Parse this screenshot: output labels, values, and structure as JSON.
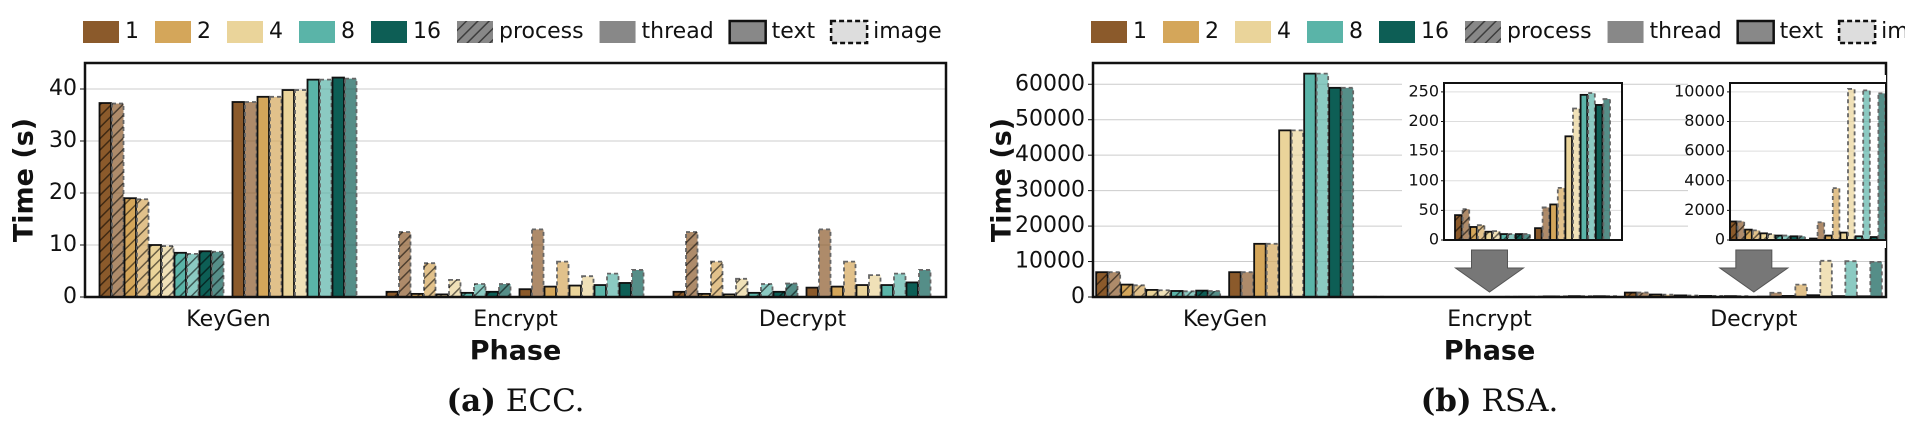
{
  "chart_data": [
    {
      "type": "bar",
      "caption_label": "(a)",
      "caption": "ECC.",
      "ylabel": "Time (s)",
      "xlabel": "Phase",
      "counts": [
        "1",
        "2",
        "4",
        "8",
        "16"
      ],
      "colors": [
        "#8b5a2b",
        "#d4a65a",
        "#ead49a",
        "#5ab4a8",
        "#0d5e55"
      ],
      "modes": [
        "process",
        "thread"
      ],
      "inputs": [
        "text",
        "image"
      ],
      "categories": [
        "KeyGen",
        "Encrypt",
        "Decrypt"
      ],
      "ylim": [
        0,
        45
      ],
      "yticks": [
        0,
        10,
        20,
        30,
        40
      ],
      "grid": true,
      "values": [
        [
          [
            [
              37.3,
              37.2
            ],
            [
              19,
              18.8
            ],
            [
              10,
              9.8
            ],
            [
              8.5,
              8.3
            ],
            [
              8.8,
              8.7
            ]
          ],
          [
            [
              37.5,
              37.5
            ],
            [
              38.5,
              38.5
            ],
            [
              39.8,
              39.8
            ],
            [
              41.8,
              41.8
            ],
            [
              42.2,
              42.0
            ]
          ]
        ],
        [
          [
            [
              1.0,
              12.5
            ],
            [
              0.6,
              6.5
            ],
            [
              0.5,
              3.3
            ],
            [
              0.8,
              2.5
            ],
            [
              1.0,
              2.5
            ]
          ],
          [
            [
              1.5,
              13
            ],
            [
              2.0,
              6.8
            ],
            [
              2.2,
              4.0
            ],
            [
              2.3,
              4.5
            ],
            [
              2.7,
              5.2
            ]
          ]
        ],
        [
          [
            [
              1.0,
              12.5
            ],
            [
              0.6,
              6.8
            ],
            [
              0.5,
              3.5
            ],
            [
              0.8,
              2.5
            ],
            [
              1.0,
              2.6
            ]
          ],
          [
            [
              1.8,
              13
            ],
            [
              2.0,
              6.8
            ],
            [
              2.3,
              4.2
            ],
            [
              2.3,
              4.5
            ],
            [
              2.8,
              5.2
            ]
          ]
        ]
      ]
    },
    {
      "type": "bar",
      "caption_label": "(b)",
      "caption": "RSA.",
      "ylabel": "Time (s)",
      "xlabel": "Phase",
      "counts": [
        "1",
        "2",
        "4",
        "8",
        "16"
      ],
      "colors": [
        "#8b5a2b",
        "#d4a65a",
        "#ead49a",
        "#5ab4a8",
        "#0d5e55"
      ],
      "modes": [
        "process",
        "thread"
      ],
      "inputs": [
        "text",
        "image"
      ],
      "categories": [
        "KeyGen",
        "Encrypt",
        "Decrypt"
      ],
      "ylim": [
        0,
        66000
      ],
      "yticks": [
        0,
        10000,
        20000,
        30000,
        40000,
        50000,
        60000
      ],
      "grid": true,
      "values": [
        [
          [
            [
              7000,
              7000
            ],
            [
              3500,
              3300
            ],
            [
              2000,
              1900
            ],
            [
              1700,
              1600
            ],
            [
              1800,
              1700
            ]
          ],
          [
            [
              7000,
              7000
            ],
            [
              15000,
              15000
            ],
            [
              47000,
              47000
            ],
            [
              63000,
              63000
            ],
            [
              59000,
              59000
            ]
          ]
        ],
        [
          [
            [
              42,
              52
            ],
            [
              22,
              25
            ],
            [
              14,
              15
            ],
            [
              10,
              10
            ],
            [
              10,
              10
            ]
          ],
          [
            [
              20,
              55
            ],
            [
              60,
              88
            ],
            [
              175,
              222
            ],
            [
              245,
              248
            ],
            [
              228,
              238
            ]
          ]
        ],
        [
          [
            [
              1250,
              1250
            ],
            [
              700,
              650
            ],
            [
              450,
              400
            ],
            [
              300,
              300
            ],
            [
              250,
              250
            ]
          ],
          [
            [
              100,
              1200
            ],
            [
              300,
              3500
            ],
            [
              500,
              10200
            ],
            [
              250,
              10100
            ],
            [
              200,
              9900
            ]
          ]
        ]
      ],
      "insets": [
        {
          "phase": 1,
          "ylim": [
            0,
            265
          ],
          "yticks": [
            0,
            50,
            100,
            150,
            200,
            250
          ]
        },
        {
          "phase": 2,
          "ylim": [
            0,
            10600
          ],
          "yticks": [
            0,
            2000,
            4000,
            6000,
            8000,
            10000
          ]
        }
      ]
    }
  ]
}
